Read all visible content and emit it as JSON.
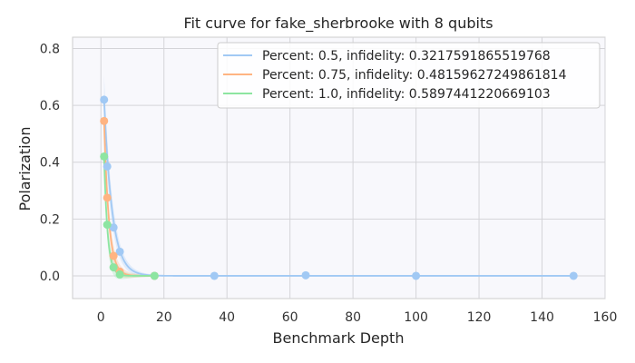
{
  "chart_data": {
    "type": "scatter",
    "title": "Fit curve for fake_sherbrooke with 8 qubits",
    "xlabel": "Benchmark Depth",
    "ylabel": "Polarization",
    "xlim": [
      -9,
      160
    ],
    "ylim": [
      -0.08,
      0.84
    ],
    "xticks": [
      0,
      20,
      40,
      60,
      80,
      100,
      120,
      140,
      160
    ],
    "yticks": [
      0.0,
      0.2,
      0.4,
      0.6,
      0.8
    ],
    "grid": true,
    "legend_position": "top-right",
    "series": [
      {
        "name": "Percent: 0.5, infidelity: 0.3217591865519768",
        "color": "#a1c9f4",
        "x": [
          1,
          2,
          4,
          6,
          17,
          36,
          65,
          100,
          150
        ],
        "y": [
          0.62,
          0.385,
          0.17,
          0.085,
          0.0,
          0.0,
          0.002,
          0.0,
          0.0
        ],
        "fit_decay": 0.6789
      },
      {
        "name": "Percent: 0.75, infidelity: 0.48159627249861814",
        "color": "#ffb482",
        "x": [
          1,
          2,
          4,
          6,
          17
        ],
        "y": [
          0.545,
          0.275,
          0.07,
          0.015,
          0.0
        ],
        "fit_decay": 0.5184
      },
      {
        "name": "Percent: 1.0, infidelity: 0.5897441220669103",
        "color": "#8de5a1",
        "x": [
          1,
          2,
          4,
          6,
          17
        ],
        "y": [
          0.42,
          0.18,
          0.03,
          0.005,
          0.0
        ],
        "fit_decay": 0.4103
      }
    ]
  }
}
